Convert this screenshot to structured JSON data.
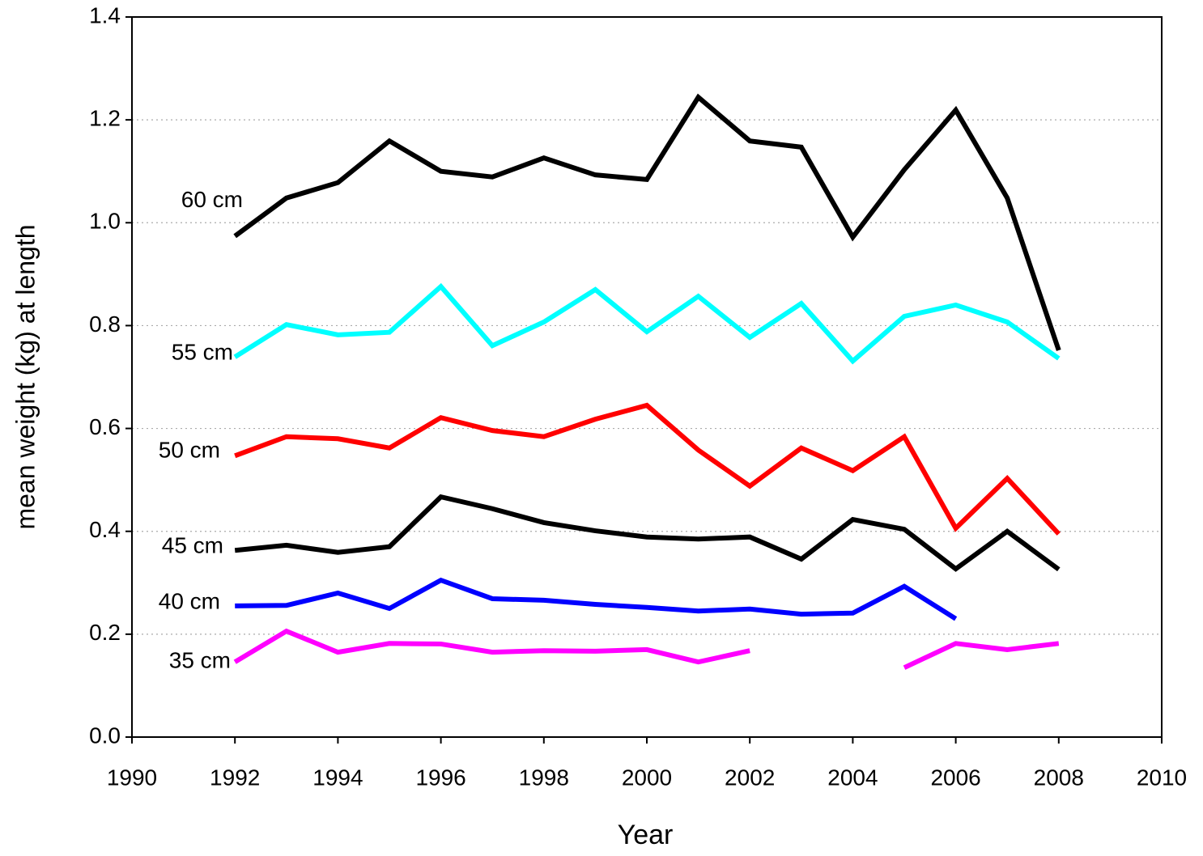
{
  "chart_data": {
    "type": "line",
    "x_label": "Year",
    "y_label": "mean weight (kg) at length",
    "x": [
      1992,
      1993,
      1994,
      1995,
      1996,
      1997,
      1998,
      1999,
      2000,
      2001,
      2002,
      2003,
      2004,
      2005,
      2006,
      2007,
      2008
    ],
    "xlim": [
      1990,
      2010
    ],
    "xticks": [
      1990,
      1992,
      1994,
      1996,
      1998,
      2000,
      2002,
      2004,
      2006,
      2008,
      2010
    ],
    "ylim": [
      0,
      1.4
    ],
    "yticks": [
      {
        "value": 0,
        "label": "0.0"
      },
      0.2,
      0.4,
      0.6,
      0.8,
      {
        "value": 1,
        "label": "1.0"
      },
      1.2,
      1.4
    ],
    "grid": true,
    "series": [
      {
        "name": "60 cm",
        "color": "#000000",
        "values": [
          0.974,
          1.048,
          1.078,
          1.159,
          1.1,
          1.089,
          1.126,
          1.093,
          1.084,
          1.244,
          1.159,
          1.147,
          0.972,
          1.103,
          1.219,
          1.048,
          0.752
        ]
      },
      {
        "name": "55 cm",
        "color": "#00ffff",
        "values": [
          0.739,
          0.802,
          0.782,
          0.787,
          0.876,
          0.761,
          0.807,
          0.87,
          0.788,
          0.857,
          0.777,
          0.843,
          0.731,
          0.818,
          0.84,
          0.807,
          0.736
        ]
      },
      {
        "name": "50 cm",
        "color": "#ff0000",
        "values": [
          0.547,
          0.584,
          0.58,
          0.562,
          0.621,
          0.596,
          0.584,
          0.618,
          0.645,
          0.558,
          0.488,
          0.562,
          0.518,
          0.584,
          0.406,
          0.503,
          0.395
        ]
      },
      {
        "name": "45 cm",
        "color": "#000000",
        "values": [
          0.363,
          0.373,
          0.359,
          0.37,
          0.467,
          0.444,
          0.417,
          0.401,
          0.389,
          0.385,
          0.389,
          0.346,
          0.423,
          0.404,
          0.327,
          0.4,
          0.326
        ]
      },
      {
        "name": "40 cm",
        "color": "#0000ff",
        "values": [
          0.255,
          0.256,
          0.28,
          0.25,
          0.305,
          0.269,
          0.266,
          0.258,
          0.252,
          0.245,
          0.249,
          0.239,
          0.241,
          0.293,
          0.23,
          null,
          null
        ]
      },
      {
        "name": "35 cm",
        "color": "#ff00ff",
        "values": [
          0.146,
          0.206,
          0.165,
          0.182,
          0.181,
          0.165,
          0.168,
          0.167,
          0.17,
          0.146,
          0.168,
          null,
          null,
          0.135,
          0.182,
          0.17,
          0.182
        ]
      }
    ]
  }
}
